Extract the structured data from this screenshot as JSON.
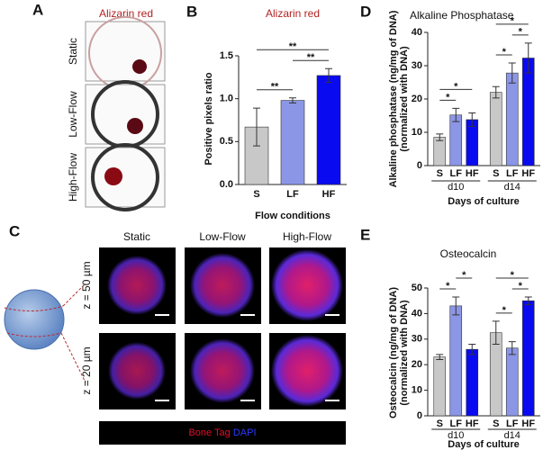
{
  "panel_labels": [
    "A",
    "B",
    "C",
    "D",
    "E"
  ],
  "panel_a": {
    "title": "Alizarin red",
    "row_labels": [
      "Static",
      "Low-Flow",
      "High-Flow"
    ]
  },
  "panel_c": {
    "column_labels": [
      "Static",
      "Low-Flow",
      "High-Flow"
    ],
    "row_labels": [
      "z = 50 µm",
      "z = 20 µm"
    ],
    "legend": [
      "Bone Tag",
      "DAPI"
    ]
  },
  "chart_data": [
    {
      "type": "bar",
      "title": "Alizarin red",
      "title_color": "#b22222",
      "y_label": [
        "Positive pixels ratio"
      ],
      "x_label": "Flow conditions",
      "categories": [
        "S",
        "LF",
        "HF"
      ],
      "values": [
        0.67,
        0.98,
        1.27
      ],
      "errors": [
        0.22,
        0.03,
        0.08
      ],
      "colors": [
        "#c8c8c8",
        "#8c96e6",
        "#0a0af0"
      ],
      "ylim": [
        0,
        1.5
      ],
      "yticks": [
        {
          "value": 0,
          "label": "0.0"
        },
        0.5,
        {
          "value": 1,
          "label": "1.0"
        },
        1.5
      ],
      "significance": [
        {
          "pair": [
            0,
            1
          ],
          "label": "**"
        },
        {
          "pair": [
            1,
            2
          ],
          "label": "**"
        },
        {
          "pair": [
            0,
            2
          ],
          "label": "**"
        }
      ]
    },
    {
      "type": "bar",
      "title": "Alkaline Phosphatase",
      "y_label": [
        "Alkaline phosphatase (ng/mg of DNA)",
        "(normalized with DNA)"
      ],
      "x_label": "Days of culture",
      "groups": [
        "d10",
        "d14"
      ],
      "series": [
        {
          "name": "S",
          "color": "#c8c8c8",
          "values": [
            8.5,
            22
          ],
          "errors": [
            1,
            1.7
          ]
        },
        {
          "name": "LF",
          "color": "#8c96e6",
          "values": [
            15.2,
            27.8
          ],
          "errors": [
            2,
            3
          ]
        },
        {
          "name": "HF",
          "color": "#0a0af0",
          "values": [
            13.8,
            32.3
          ],
          "errors": [
            2,
            4.5
          ]
        }
      ],
      "ylim": [
        0,
        40
      ],
      "yticks": [
        0,
        10,
        20,
        30,
        40
      ],
      "significance": [
        {
          "group": 0,
          "pair": [
            0,
            1
          ],
          "label": "*"
        },
        {
          "group": 0,
          "pair": [
            0,
            2
          ],
          "label": "*"
        },
        {
          "group": 1,
          "pair": [
            0,
            1
          ],
          "label": "*"
        },
        {
          "group": 1,
          "pair": [
            1,
            2
          ],
          "label": "*"
        },
        {
          "group": 1,
          "pair": [
            0,
            2
          ],
          "label": "*"
        }
      ]
    },
    {
      "type": "bar",
      "title": "Osteocalcin",
      "y_label": [
        "Osteocalcin (ng/mg of DNA)",
        "(normalized with DNA)"
      ],
      "x_label": "Days of culture",
      "groups": [
        "d10",
        "d14"
      ],
      "series": [
        {
          "name": "S",
          "color": "#c8c8c8",
          "values": [
            23,
            32.5
          ],
          "errors": [
            1,
            4.5
          ]
        },
        {
          "name": "LF",
          "color": "#8c96e6",
          "values": [
            43,
            26.5
          ],
          "errors": [
            3.5,
            2.5
          ]
        },
        {
          "name": "HF",
          "color": "#0a0af0",
          "values": [
            26,
            45
          ],
          "errors": [
            2,
            1.5
          ]
        }
      ],
      "ylim": [
        0,
        50
      ],
      "yticks": [
        0,
        10,
        20,
        30,
        40,
        50
      ],
      "significance": [
        {
          "group": 0,
          "pair": [
            0,
            1
          ],
          "label": "*"
        },
        {
          "group": 0,
          "pair": [
            1,
            2
          ],
          "label": "*"
        },
        {
          "group": 1,
          "pair": [
            0,
            1
          ],
          "label": "*"
        },
        {
          "group": 1,
          "pair": [
            1,
            2
          ],
          "label": "*"
        },
        {
          "group": 1,
          "pair": [
            0,
            2
          ],
          "label": "*"
        }
      ]
    }
  ]
}
